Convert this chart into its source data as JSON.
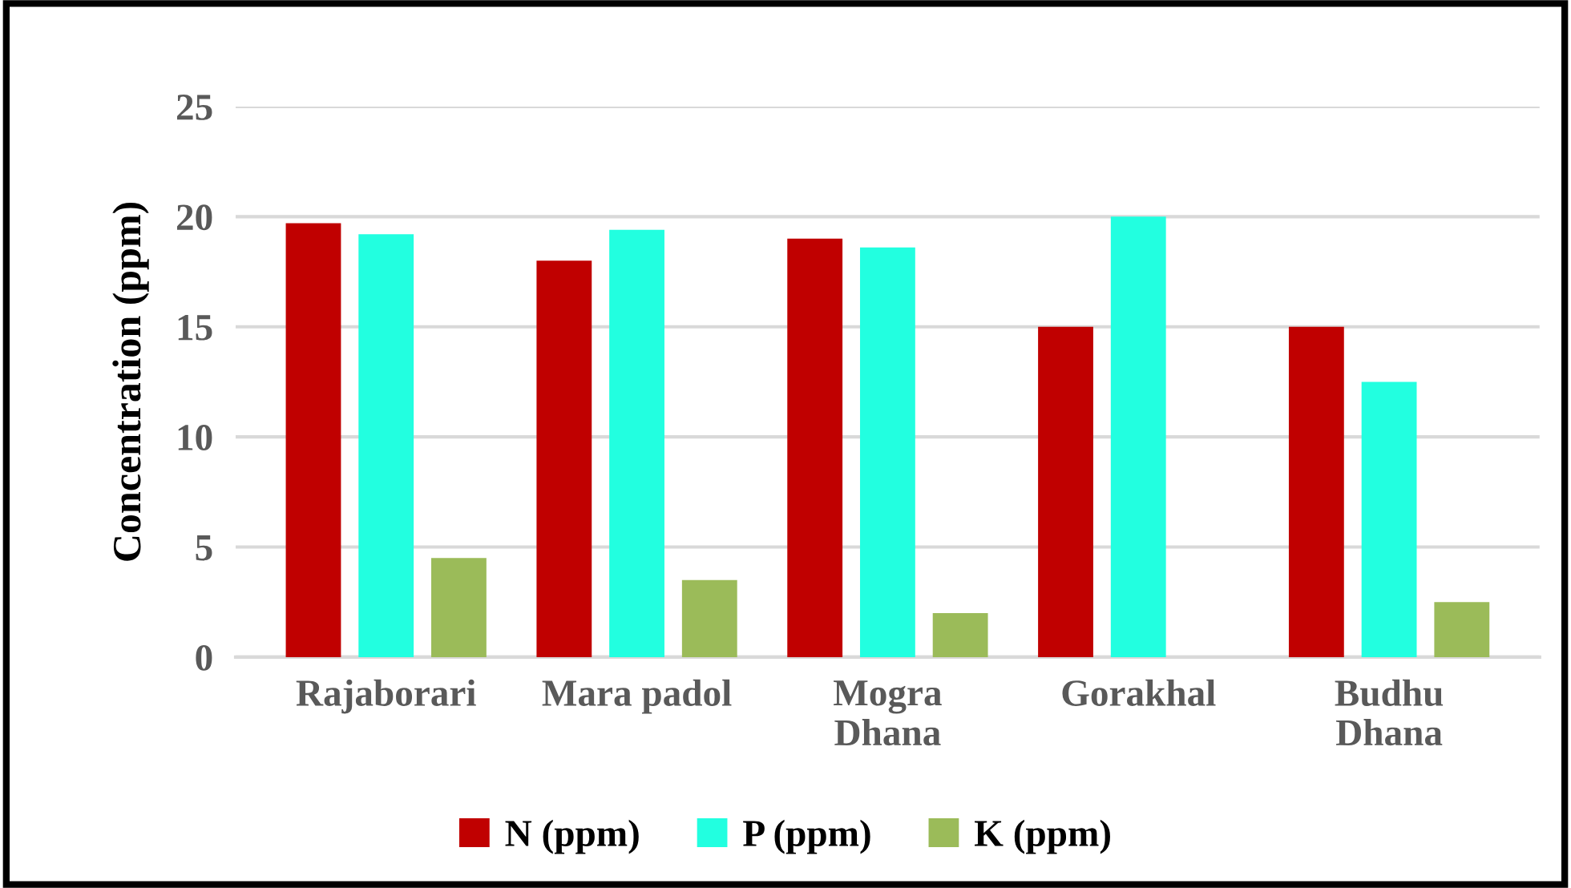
{
  "chart_data": {
    "type": "bar",
    "ylabel": "Concentration (ppm)",
    "categories": [
      "Rajaborari",
      "Mara padol",
      "Mogra\nDhana",
      "Gorakhal",
      "Budhu\nDhana"
    ],
    "series": [
      {
        "name": "N (ppm)",
        "color": "#c00000",
        "values": [
          19.7,
          18,
          19,
          15,
          15
        ]
      },
      {
        "name": "P (ppm)",
        "color": "#22ffe0",
        "values": [
          19.2,
          19.4,
          18.6,
          20,
          12.5
        ]
      },
      {
        "name": "K (ppm)",
        "color": "#9bbb59",
        "values": [
          4.5,
          3.5,
          2,
          0,
          2.5
        ]
      }
    ],
    "ylim": [
      0,
      25
    ],
    "yticks": [
      0,
      5,
      10,
      15,
      20,
      25
    ],
    "grid": "y",
    "legend": "bottom"
  }
}
